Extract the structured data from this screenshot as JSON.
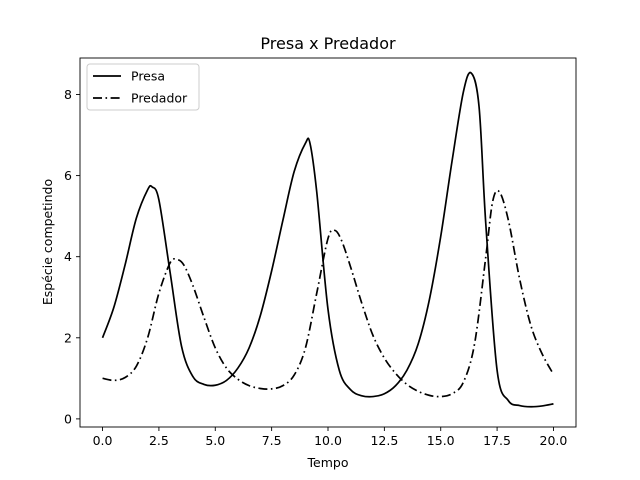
{
  "chart_data": {
    "type": "line",
    "title": "Presa x Predador",
    "xlabel": "Tempo",
    "ylabel": "Espécie competindo",
    "xlim": [
      -1.0,
      21.0
    ],
    "ylim": [
      -0.2,
      8.9
    ],
    "xticks": [
      0.0,
      2.5,
      5.0,
      7.5,
      10.0,
      12.5,
      15.0,
      17.5,
      20.0
    ],
    "xtick_labels": [
      "0.0",
      "2.5",
      "5.0",
      "7.5",
      "10.0",
      "12.5",
      "15.0",
      "17.5",
      "20.0"
    ],
    "yticks": [
      0,
      2,
      4,
      6,
      8
    ],
    "ytick_labels": [
      "0",
      "2",
      "4",
      "6",
      "8"
    ],
    "grid": false,
    "legend": "top-left",
    "series": [
      {
        "name": "Presa",
        "style": "solid",
        "color": "#000000",
        "x": [
          0.0,
          0.5,
          1.0,
          1.5,
          2.0,
          2.2,
          2.5,
          3.0,
          3.5,
          4.0,
          4.5,
          5.0,
          5.5,
          6.0,
          6.5,
          7.0,
          7.5,
          8.0,
          8.5,
          9.0,
          9.2,
          9.5,
          10.0,
          10.5,
          11.0,
          11.5,
          12.0,
          12.5,
          13.0,
          13.5,
          14.0,
          14.5,
          15.0,
          15.5,
          16.0,
          16.35,
          16.7,
          17.0,
          17.5,
          18.0,
          18.5,
          19.0,
          19.5,
          20.0
        ],
        "y": [
          2.0,
          2.75,
          3.8,
          4.95,
          5.65,
          5.72,
          5.4,
          3.6,
          1.8,
          1.05,
          0.85,
          0.83,
          0.95,
          1.25,
          1.75,
          2.55,
          3.65,
          4.9,
          6.1,
          6.8,
          6.8,
          5.6,
          2.7,
          1.2,
          0.72,
          0.57,
          0.55,
          0.62,
          0.82,
          1.2,
          1.85,
          2.95,
          4.5,
          6.35,
          8.05,
          8.53,
          7.7,
          4.8,
          1.2,
          0.45,
          0.33,
          0.3,
          0.32,
          0.37
        ]
      },
      {
        "name": "Predador",
        "style": "dashdot",
        "color": "#000000",
        "x": [
          0.0,
          0.5,
          1.0,
          1.5,
          2.0,
          2.5,
          3.0,
          3.3,
          3.6,
          4.0,
          4.5,
          5.0,
          5.5,
          6.0,
          6.5,
          7.0,
          7.5,
          8.0,
          8.5,
          9.0,
          9.5,
          10.0,
          10.3,
          10.6,
          11.0,
          11.5,
          12.0,
          12.5,
          13.0,
          13.5,
          14.0,
          14.5,
          15.0,
          15.5,
          16.0,
          16.5,
          17.0,
          17.3,
          17.6,
          18.0,
          18.5,
          19.0,
          19.5,
          20.0
        ],
        "y": [
          1.0,
          0.95,
          1.02,
          1.3,
          2.0,
          3.1,
          3.85,
          3.93,
          3.8,
          3.3,
          2.5,
          1.75,
          1.25,
          0.98,
          0.82,
          0.75,
          0.74,
          0.82,
          1.08,
          1.75,
          3.1,
          4.45,
          4.65,
          4.4,
          3.75,
          2.85,
          2.05,
          1.5,
          1.12,
          0.85,
          0.68,
          0.58,
          0.55,
          0.62,
          0.9,
          1.85,
          4.0,
          5.35,
          5.6,
          4.9,
          3.45,
          2.3,
          1.6,
          1.1
        ]
      }
    ]
  }
}
